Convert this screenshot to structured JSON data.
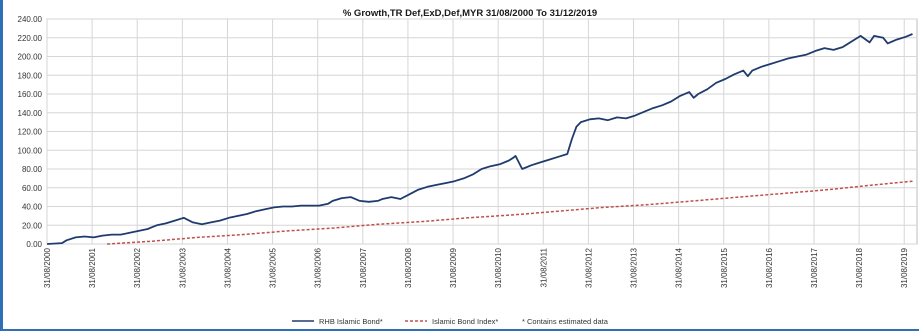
{
  "chart_data": {
    "type": "line",
    "title": "% Growth,TR Def,ExD,Def,MYR 31/08/2000 To 31/12/2019",
    "xlabel": "",
    "ylabel": "",
    "ylim": [
      0,
      240
    ],
    "xlim": [
      "31/08/2000",
      "31/12/2019"
    ],
    "grid": true,
    "legend_position": "bottom",
    "y_ticks": [
      "0.00",
      "20.00",
      "40.00",
      "60.00",
      "80.00",
      "100.00",
      "120.00",
      "140.00",
      "160.00",
      "180.00",
      "200.00",
      "220.00",
      "240.00"
    ],
    "x_ticks": [
      "31/08/2000",
      "31/08/2001",
      "31/08/2002",
      "31/08/2003",
      "31/08/2004",
      "31/08/2005",
      "31/08/2006",
      "31/08/2007",
      "31/08/2008",
      "31/08/2009",
      "31/08/2010",
      "31/08/2011",
      "31/08/2012",
      "31/08/2013",
      "31/08/2014",
      "31/08/2015",
      "31/08/2016",
      "31/08/2017",
      "31/08/2018",
      "31/08/2019"
    ],
    "series": [
      {
        "name": "RHB Islamic Bond*",
        "color": "#1f3b6e",
        "style": "solid",
        "x": [
          2000.67,
          2001.0,
          2001.1,
          2001.3,
          2001.5,
          2001.7,
          2001.9,
          2002.1,
          2002.3,
          2002.5,
          2002.7,
          2002.9,
          2003.0,
          2003.1,
          2003.3,
          2003.5,
          2003.7,
          2003.9,
          2004.1,
          2004.3,
          2004.5,
          2004.7,
          2004.9,
          2005.1,
          2005.3,
          2005.5,
          2005.7,
          2005.9,
          2006.1,
          2006.3,
          2006.5,
          2006.7,
          2006.9,
          2007.0,
          2007.2,
          2007.4,
          2007.6,
          2007.8,
          2008.0,
          2008.1,
          2008.3,
          2008.5,
          2008.7,
          2008.9,
          2009.1,
          2009.3,
          2009.5,
          2009.7,
          2009.9,
          2010.1,
          2010.3,
          2010.5,
          2010.7,
          2010.9,
          2011.0,
          2011.05,
          2011.2,
          2011.4,
          2011.6,
          2011.8,
          2012.0,
          2012.2,
          2012.3,
          2012.4,
          2012.5,
          2012.7,
          2012.9,
          2013.1,
          2013.3,
          2013.5,
          2013.7,
          2013.9,
          2014.1,
          2014.3,
          2014.5,
          2014.7,
          2014.9,
          2015.0,
          2015.1,
          2015.3,
          2015.5,
          2015.7,
          2015.9,
          2016.1,
          2016.2,
          2016.3,
          2016.5,
          2016.7,
          2016.9,
          2017.1,
          2017.3,
          2017.5,
          2017.7,
          2017.9,
          2018.1,
          2018.3,
          2018.4,
          2018.5,
          2018.7,
          2018.9,
          2019.0,
          2019.2,
          2019.3,
          2019.5,
          2019.7,
          2019.85
        ],
        "values": [
          0,
          1,
          4,
          7,
          8,
          7,
          9,
          10,
          10,
          12,
          14,
          16,
          18,
          20,
          22,
          25,
          28,
          23,
          21,
          23,
          25,
          28,
          30,
          32,
          35,
          37,
          39,
          40,
          40,
          41,
          41,
          41,
          43,
          46,
          49,
          50,
          46,
          45,
          46,
          48,
          50,
          48,
          53,
          58,
          61,
          63,
          65,
          67,
          70,
          74,
          80,
          83,
          85,
          89,
          92,
          94,
          80,
          84,
          87,
          90,
          93,
          96,
          112,
          125,
          130,
          133,
          134,
          132,
          135,
          134,
          137,
          141,
          145,
          148,
          152,
          158,
          162,
          156,
          160,
          165,
          172,
          176,
          181,
          185,
          179,
          185,
          189,
          192,
          195,
          198,
          200,
          202,
          206,
          209,
          207,
          210,
          213,
          216,
          222,
          215,
          222,
          220,
          214,
          218,
          221,
          224
        ]
      },
      {
        "name": "Islamic Bond Index*",
        "color": "#c0504d",
        "style": "dashed",
        "x": [
          2002.0,
          2003.0,
          2004.0,
          2005.0,
          2006.0,
          2007.0,
          2008.0,
          2009.0,
          2010.0,
          2011.0,
          2012.0,
          2013.0,
          2014.0,
          2015.0,
          2016.0,
          2017.0,
          2018.0,
          2019.0,
          2019.85
        ],
        "values": [
          0,
          3,
          7,
          10,
          14,
          17,
          21,
          24,
          28,
          31,
          35,
          39,
          42,
          46,
          50,
          54,
          58,
          63,
          67
        ]
      }
    ],
    "footnote": "* Contains estimated data"
  }
}
